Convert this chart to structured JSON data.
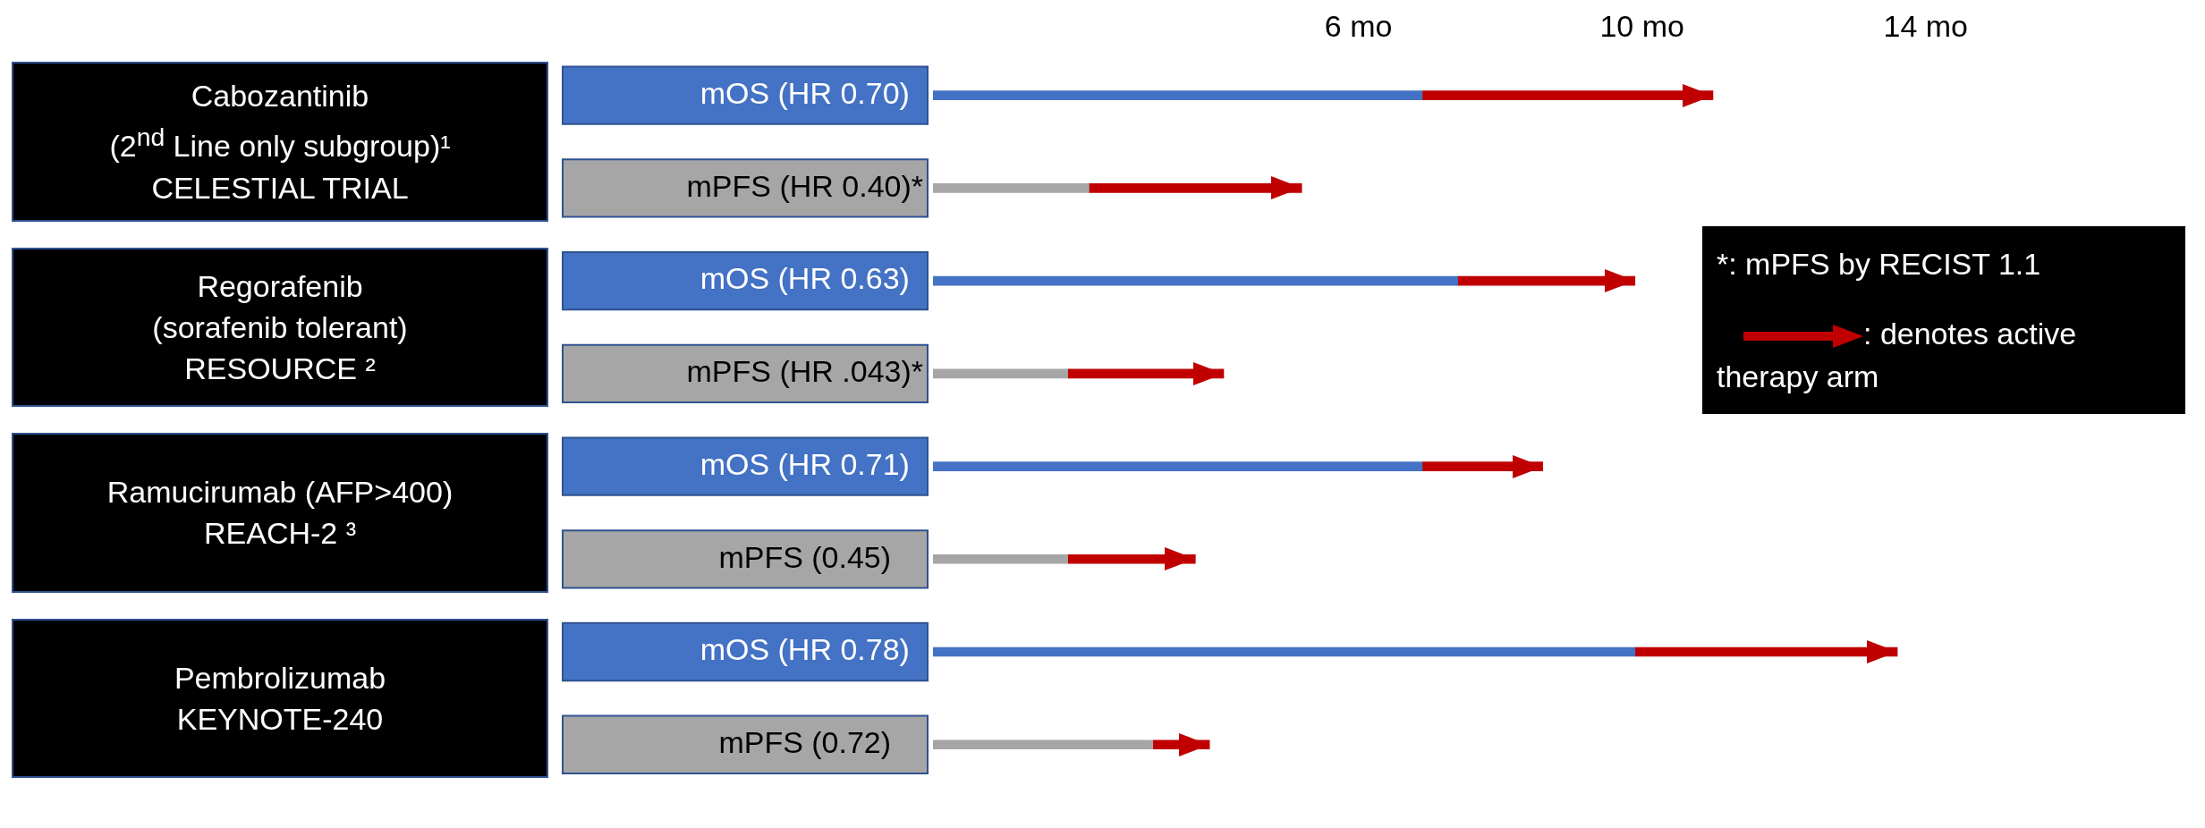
{
  "chart_data": {
    "type": "bar",
    "orientation": "horizontal",
    "stacked": true,
    "grid": false,
    "legend": "right",
    "categories": [
      "mOS (HR 0.70)",
      "mPFS (HR 0.40)*",
      "mOS (HR 0.63)",
      "mPFS (HR .043)*",
      "mOS (HR 0.71)",
      "mPFS (0.45)",
      "mOS (HR 0.78)",
      "mPFS (0.72)"
    ],
    "series": [
      {
        "colors": [
          "#4472c4",
          "#a6a6a6",
          "#4472c4",
          "#a6a6a6",
          "#4472c4",
          "#a6a6a6",
          "#4472c4",
          "#a6a6a6"
        ],
        "values": [
          6.9,
          2.2,
          7.4,
          1.9,
          6.9,
          1.9,
          9.9,
          3.1
        ]
      },
      {
        "name": ": denotes active therapy arm",
        "color": "#c00000",
        "values": [
          4.1,
          3.0,
          2.5,
          2.2,
          1.7,
          1.8,
          3.7,
          0.8
        ]
      }
    ],
    "xlim": [
      0,
      14
    ],
    "xticks": [
      {
        "value": 6,
        "label": "6 mo"
      },
      {
        "value": 10,
        "label": "10 mo"
      },
      {
        "value": 14,
        "label": "14 mo"
      }
    ],
    "annotations": [
      "Cabozantinib\n(2$^{nd}$ Line only subgroup)¹\nCELESTIAL TRIAL",
      "Regorafenib\n(sorafenib tolerant)\nRESOURCE ²",
      "Ramucirumab (AFP>400)\nREACH-2 ³",
      "Pembrolizumab\nKEYNOTE-240",
      "*: mPFS by RECIST 1.1"
    ]
  }
}
